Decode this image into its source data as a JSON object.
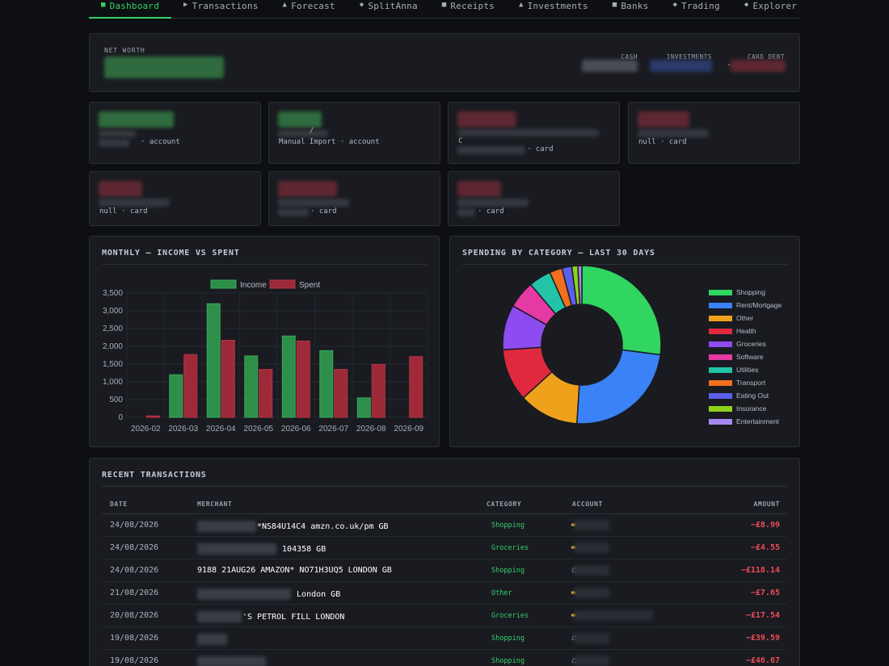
{
  "nav": {
    "tabs": [
      {
        "label": "Dashboard",
        "glyph": "■",
        "icon": "square-icon",
        "active": true
      },
      {
        "label": "Transactions",
        "glyph": "▶",
        "icon": "play-icon"
      },
      {
        "label": "Forecast",
        "glyph": "▲",
        "icon": "triangle-icon"
      },
      {
        "label": "SplitAnna",
        "glyph": "◆",
        "icon": "diamond-icon"
      },
      {
        "label": "Receipts",
        "glyph": "■",
        "icon": "square-icon"
      },
      {
        "label": "Investments",
        "glyph": "▲",
        "icon": "triangle-icon"
      },
      {
        "label": "Banks",
        "glyph": "■",
        "icon": "square-icon"
      },
      {
        "label": "Trading",
        "glyph": "◆",
        "icon": "diamond-icon"
      },
      {
        "label": "Explorer",
        "glyph": "◆",
        "icon": "diamond-icon"
      }
    ]
  },
  "net_worth": {
    "label": "NET WORTH",
    "cash_label": "CASH",
    "investments_label": "INVESTMENTS",
    "card_debt_label": "CARD DEBT",
    "card_debt_prefix": "-"
  },
  "accounts": [
    {
      "sub": "· account",
      "tone": "green"
    },
    {
      "sub": "Manual Import · account",
      "slash": "/",
      "tone": "green"
    },
    {
      "sub": "· card",
      "line2": "C",
      "tone": "red"
    },
    {
      "sub": "null · card",
      "tone": "red"
    },
    {
      "sub": "null · card",
      "tone": "red"
    },
    {
      "sub": "· card",
      "tone": "red"
    },
    {
      "sub": "· card",
      "tone": "red"
    }
  ],
  "monthly": {
    "title": "MONTHLY — INCOME VS SPENT"
  },
  "category": {
    "title": "SPENDING BY CATEGORY — LAST 30 DAYS"
  },
  "chart_data": [
    {
      "type": "bar",
      "title": "MONTHLY — INCOME VS SPENT",
      "categories": [
        "2026-02",
        "2026-03",
        "2026-04",
        "2026-05",
        "2026-06",
        "2026-07",
        "2026-08",
        "2026-09"
      ],
      "series": [
        {
          "name": "Income",
          "color": "#2e8f4a",
          "values": [
            0,
            1200,
            3200,
            1730,
            2290,
            1880,
            550,
            0
          ]
        },
        {
          "name": "Spent",
          "color": "#9c2a38",
          "values": [
            40,
            1770,
            2170,
            1350,
            2150,
            1350,
            1490,
            1710
          ]
        }
      ],
      "yticks": [
        "0",
        "500",
        "1,000",
        "1,500",
        "2,000",
        "2,500",
        "3,000",
        "3,500"
      ],
      "ylim": [
        0,
        3500
      ],
      "legend": "top",
      "grid": true
    },
    {
      "type": "pie",
      "title": "SPENDING BY CATEGORY — LAST 30 DAYS",
      "donut": true,
      "slices": [
        {
          "label": "Shopping",
          "value": 26.5,
          "color": "#30d65f"
        },
        {
          "label": "Rent/Mortgage",
          "value": 23.5,
          "color": "#3b82f6"
        },
        {
          "label": "Other",
          "value": 12.0,
          "color": "#f0a11c"
        },
        {
          "label": "Health",
          "value": 10.5,
          "color": "#e0293f"
        },
        {
          "label": "Groceries",
          "value": 9.0,
          "color": "#8e4cf0"
        },
        {
          "label": "Software",
          "value": 5.5,
          "color": "#e43aa1"
        },
        {
          "label": "Utilities",
          "value": 4.5,
          "color": "#22c3a7"
        },
        {
          "label": "Transport",
          "value": 2.5,
          "color": "#f26f1d"
        },
        {
          "label": "Eating Out",
          "value": 2.0,
          "color": "#5a60ea"
        },
        {
          "label": "Insurance",
          "value": 1.2,
          "color": "#8fd21b"
        },
        {
          "label": "Entertainment",
          "value": 0.8,
          "color": "#a888ef"
        }
      ],
      "legend": "right"
    }
  ],
  "transactions": {
    "title": "RECENT TRANSACTIONS",
    "headers": {
      "date": "DATE",
      "merchant": "MERCHANT",
      "category": "CATEGORY",
      "account": "ACCOUNT",
      "amount": "AMOUNT"
    },
    "rows": [
      {
        "date": "24/08/2026",
        "merchant": "*NS84U14C4 amzn.co.uk/pm GB",
        "category": "Shopping",
        "account_icon": "card-icon",
        "amount": "−£8.99"
      },
      {
        "date": "24/08/2026",
        "merchant": "104358 GB",
        "category": "Groceries",
        "account_icon": "card-icon",
        "amount": "−£4.55"
      },
      {
        "date": "24/08/2026",
        "merchant": "9188 21AUG26 AMAZON* NO71H3UQ5 LONDON GB",
        "category": "Shopping",
        "account_icon": "bank-icon",
        "amount": "−£118.14"
      },
      {
        "date": "21/08/2026",
        "merchant": "London GB",
        "category": "Other",
        "account_icon": "card-icon",
        "amount": "−£7.65"
      },
      {
        "date": "20/08/2026",
        "merchant": "'S PETROL FILL LONDON",
        "category": "Groceries",
        "account_icon": "card-icon",
        "amount": "−£17.54"
      },
      {
        "date": "19/08/2026",
        "merchant": "",
        "category": "Shopping",
        "account_icon": "bank-icon",
        "amount": "−£39.59"
      },
      {
        "date": "19/08/2026",
        "merchant": "",
        "category": "Shopping",
        "account_icon": "bank-icon",
        "amount": "−£46.67"
      }
    ]
  }
}
